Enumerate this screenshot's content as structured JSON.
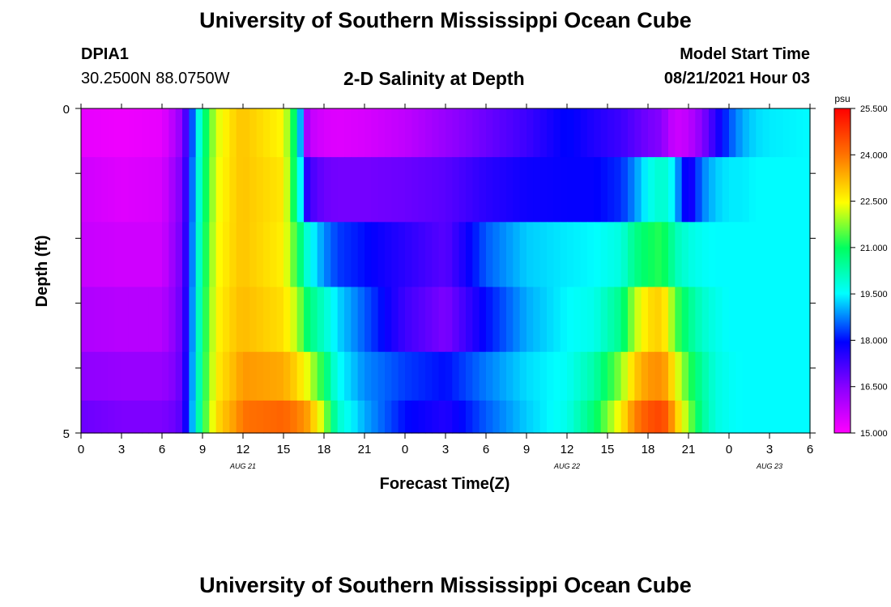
{
  "header": {
    "title": "University of Southern Mississippi Ocean Cube",
    "station_id": "DPIA1",
    "station_coords": "30.2500N  88.0750W",
    "plot_title": "2-D Salinity at Depth",
    "model_start_label": "Model Start Time",
    "model_start_value": "08/21/2021 Hour 03"
  },
  "footer": {
    "title": "University of Southern Mississippi Ocean Cube"
  },
  "chart_data": {
    "type": "heatmap",
    "title": "2-D Salinity at Depth",
    "xlabel": "Forecast Time(Z)",
    "ylabel": "Depth (ft)",
    "x_tick_labels": [
      "0",
      "3",
      "6",
      "9",
      "12",
      "15",
      "18",
      "21",
      "0",
      "3",
      "6",
      "9",
      "12",
      "15",
      "18",
      "21",
      "0",
      "3",
      "6"
    ],
    "x_date_labels": [
      {
        "label": "AUG 21",
        "at_hour": 12
      },
      {
        "label": "AUG 22",
        "at_hour": 36
      },
      {
        "label": "AUG 23",
        "at_hour": 51
      }
    ],
    "x_range_hours": [
      0,
      54
    ],
    "y_tick_labels": [
      "0",
      "5"
    ],
    "ylim": [
      0,
      5
    ],
    "y_inverted": true,
    "colorbar": {
      "unit": "psu",
      "min": 15.0,
      "max": 25.5,
      "tick_labels": [
        "25.500",
        "24.000",
        "22.500",
        "21.000",
        "19.500",
        "18.000",
        "16.500",
        "15.000"
      ],
      "tick_values": [
        25.5,
        24.0,
        22.5,
        21.0,
        19.5,
        18.0,
        16.5,
        15.0
      ]
    },
    "depth_rows": [
      0.25,
      1.25,
      2.25,
      3.25,
      4.25,
      4.75
    ],
    "times_hours": [
      0,
      3,
      6,
      7,
      7.5,
      8,
      9,
      10,
      11.5,
      12,
      15,
      16,
      16.8,
      18,
      19,
      21,
      24,
      27,
      30,
      33,
      36,
      38,
      40,
      41,
      42,
      43,
      43.5,
      44,
      45,
      46,
      47,
      48,
      49,
      50,
      51,
      54
    ],
    "values": [
      [
        15.3,
        15.2,
        15.3,
        16.0,
        16.5,
        17.8,
        20.5,
        22.2,
        23.0,
        23.1,
        22.5,
        20.5,
        15.8,
        15.5,
        15.4,
        15.5,
        15.8,
        16.3,
        16.8,
        17.3,
        18.0,
        17.6,
        17.3,
        17.0,
        16.7,
        16.5,
        16.0,
        15.6,
        15.8,
        16.5,
        17.5,
        18.4,
        19.0,
        19.3,
        19.4,
        19.5
      ],
      [
        15.6,
        15.4,
        15.5,
        16.3,
        16.7,
        18.0,
        20.6,
        22.3,
        23.0,
        23.1,
        22.7,
        20.5,
        17.3,
        16.8,
        16.7,
        16.7,
        16.8,
        17.0,
        17.5,
        17.8,
        17.9,
        17.9,
        18.2,
        18.8,
        19.6,
        20.0,
        19.8,
        19.2,
        17.5,
        18.7,
        19.2,
        19.4,
        19.4,
        19.5,
        19.5,
        19.5
      ],
      [
        15.7,
        15.6,
        15.6,
        16.4,
        16.8,
        18.1,
        20.7,
        22.4,
        23.0,
        23.1,
        22.6,
        21.2,
        19.8,
        18.8,
        18.3,
        18.0,
        17.5,
        17.0,
        18.5,
        19.2,
        19.4,
        19.5,
        19.8,
        20.6,
        21.0,
        21.2,
        20.8,
        20.2,
        19.8,
        19.6,
        19.5,
        19.5,
        19.5,
        19.5,
        19.5,
        19.5
      ],
      [
        16.0,
        15.9,
        15.9,
        16.5,
        16.9,
        18.2,
        20.8,
        22.5,
        23.1,
        23.2,
        22.8,
        22.0,
        20.8,
        20.0,
        19.3,
        18.5,
        17.3,
        16.6,
        18.0,
        19.0,
        19.5,
        19.7,
        20.6,
        22.0,
        22.8,
        23.0,
        22.4,
        21.5,
        20.6,
        20.0,
        19.7,
        19.5,
        19.5,
        19.5,
        19.5,
        19.5
      ],
      [
        16.4,
        16.3,
        16.3,
        16.6,
        17.0,
        18.3,
        20.9,
        22.6,
        23.3,
        23.6,
        23.4,
        22.9,
        22.3,
        21.0,
        19.6,
        18.8,
        18.3,
        18.0,
        18.7,
        19.3,
        19.6,
        20.3,
        21.8,
        23.0,
        23.6,
        23.7,
        23.3,
        22.5,
        21.3,
        20.4,
        19.8,
        19.6,
        19.5,
        19.5,
        19.5,
        19.5
      ],
      [
        16.8,
        16.6,
        16.6,
        16.8,
        17.1,
        18.4,
        21.0,
        22.8,
        23.6,
        24.0,
        24.2,
        23.9,
        23.5,
        22.0,
        20.0,
        19.0,
        18.0,
        17.6,
        18.5,
        19.2,
        19.7,
        20.8,
        22.6,
        23.8,
        24.4,
        24.6,
        24.2,
        23.2,
        21.8,
        20.5,
        19.8,
        19.6,
        19.5,
        19.5,
        19.5,
        19.5
      ]
    ],
    "grid": false,
    "legend": "colorbar-right"
  }
}
